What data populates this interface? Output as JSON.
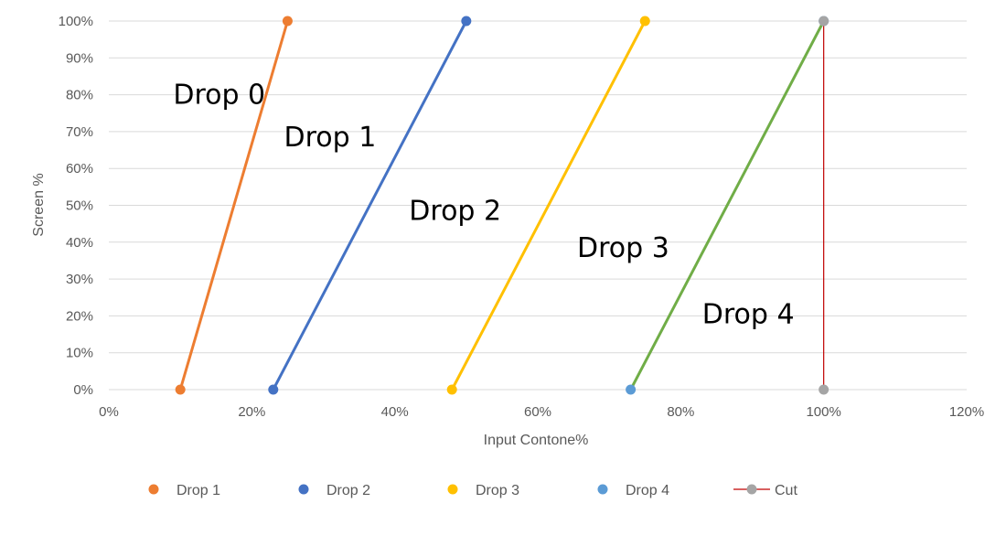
{
  "chart_data": {
    "type": "scatter",
    "xlabel": "Input Contone%",
    "ylabel": "Screen %",
    "xlim": [
      0,
      120
    ],
    "ylim": [
      0,
      100
    ],
    "x_ticks": [
      "0%",
      "20%",
      "40%",
      "60%",
      "80%",
      "100%",
      "120%"
    ],
    "y_ticks": [
      "0%",
      "10%",
      "20%",
      "30%",
      "40%",
      "50%",
      "60%",
      "70%",
      "80%",
      "90%",
      "100%"
    ],
    "grid": "horizontal",
    "legend_position": "bottom",
    "series": [
      {
        "name": "Drop 1",
        "color": "#ED7D31",
        "points": [
          [
            10,
            0
          ],
          [
            25,
            100
          ]
        ]
      },
      {
        "name": "Drop 2",
        "color": "#4472C4",
        "points": [
          [
            23,
            0
          ],
          [
            50,
            100
          ]
        ]
      },
      {
        "name": "Drop 3",
        "color": "#FFC000",
        "points": [
          [
            48,
            0
          ],
          [
            75,
            100
          ]
        ]
      },
      {
        "name": "Drop 4",
        "color": "#5B9BD5",
        "line_color": "#70AD47",
        "points": [
          [
            73,
            0
          ],
          [
            100,
            100
          ]
        ]
      },
      {
        "name": "Cut",
        "color": "#A5A5A5",
        "line_color": "#C00000",
        "points": [
          [
            100,
            0
          ],
          [
            100,
            100
          ]
        ]
      }
    ],
    "annotations": [
      {
        "text": "Drop  0",
        "x": 9,
        "y": 80
      },
      {
        "text": "Drop  1",
        "x": 24.5,
        "y": 68.5
      },
      {
        "text": "Drop  2",
        "x": 42,
        "y": 48.5
      },
      {
        "text": "Drop  3",
        "x": 65.5,
        "y": 38.5
      },
      {
        "text": "Drop  4",
        "x": 83,
        "y": 20.5
      }
    ]
  }
}
